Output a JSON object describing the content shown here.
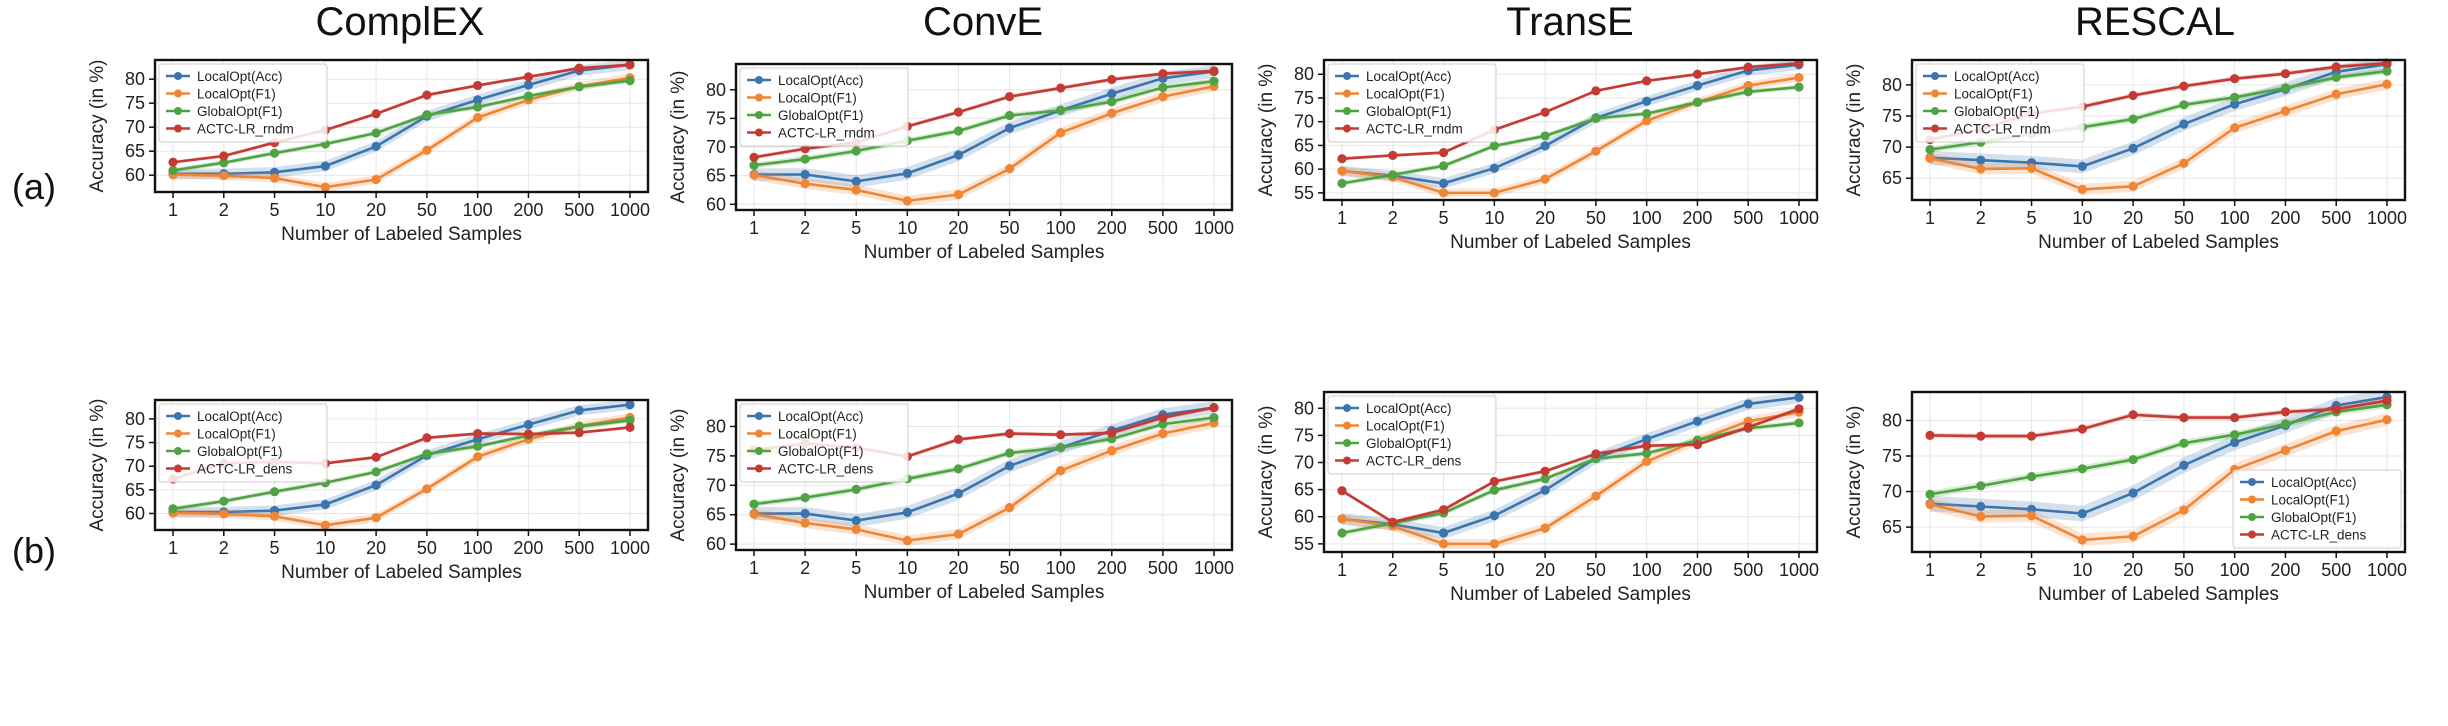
{
  "column_titles": [
    "ComplEX",
    "ConvE",
    "TransE",
    "RESCAL"
  ],
  "row_labels": [
    "(a)",
    "(b)"
  ],
  "colors": {
    "LocalOpt(Acc)": "#3b75af",
    "LocalOpt(F1)": "#ef8636",
    "GlobalOpt(F1)": "#4fa342",
    "ACTC-LR": "#c53a32"
  },
  "chart_data": [
    {
      "id": "a-complex",
      "type": "line",
      "title": "ComplEX",
      "xlabel": "Number of Labeled Samples",
      "ylabel": "Accuracy (in %)",
      "categories": [
        "1",
        "2",
        "5",
        "10",
        "20",
        "50",
        "100",
        "200",
        "500",
        "1000"
      ],
      "ylim": [
        56.5,
        84
      ],
      "yticks": [
        60,
        65,
        70,
        75,
        80
      ],
      "legend_pos": "top-left",
      "series": [
        {
          "name": "LocalOpt(Acc)",
          "color": "#3b75af",
          "values": [
            60.3,
            60.3,
            60.6,
            61.9,
            66.0,
            72.3,
            75.7,
            78.8,
            81.8,
            83.0
          ]
        },
        {
          "name": "LocalOpt(F1)",
          "color": "#ef8636",
          "values": [
            60.1,
            59.9,
            59.4,
            57.5,
            59.1,
            65.2,
            72.0,
            75.7,
            78.5,
            80.3
          ]
        },
        {
          "name": "GlobalOpt(F1)",
          "color": "#4fa342",
          "values": [
            61.0,
            62.6,
            64.6,
            66.5,
            68.8,
            72.6,
            74.2,
            76.5,
            78.4,
            79.7
          ]
        },
        {
          "name": "ACTC-LR_rndm",
          "color": "#c53a32",
          "values": [
            62.7,
            64.0,
            66.8,
            69.4,
            72.8,
            76.7,
            78.7,
            80.5,
            82.3,
            83.0
          ]
        }
      ]
    },
    {
      "id": "a-conve",
      "type": "line",
      "title": "ConvE",
      "xlabel": "Number of Labeled Samples",
      "ylabel": "Accuracy (in %)",
      "categories": [
        "1",
        "2",
        "5",
        "10",
        "20",
        "50",
        "100",
        "200",
        "500",
        "1000"
      ],
      "ylim": [
        59,
        84.5
      ],
      "yticks": [
        60,
        65,
        70,
        75,
        80
      ],
      "legend_pos": "top-left",
      "series": [
        {
          "name": "LocalOpt(Acc)",
          "color": "#3b75af",
          "values": [
            65.2,
            65.2,
            64.0,
            65.4,
            68.6,
            73.3,
            76.4,
            79.3,
            82.0,
            83.2
          ]
        },
        {
          "name": "LocalOpt(F1)",
          "color": "#ef8636",
          "values": [
            65.1,
            63.6,
            62.5,
            60.6,
            61.7,
            66.2,
            72.5,
            75.9,
            78.8,
            80.6
          ]
        },
        {
          "name": "GlobalOpt(F1)",
          "color": "#4fa342",
          "values": [
            66.8,
            67.9,
            69.3,
            71.1,
            72.8,
            75.5,
            76.4,
            77.9,
            80.4,
            81.5
          ]
        },
        {
          "name": "ACTC-LR_rndm",
          "color": "#c53a32",
          "values": [
            68.2,
            69.7,
            70.8,
            73.6,
            76.1,
            78.8,
            80.3,
            81.8,
            82.8,
            83.3
          ]
        }
      ]
    },
    {
      "id": "a-transe",
      "type": "line",
      "title": "TransE",
      "xlabel": "Number of Labeled Samples",
      "ylabel": "Accuracy (in %)",
      "categories": [
        "1",
        "2",
        "5",
        "10",
        "20",
        "50",
        "100",
        "200",
        "500",
        "1000"
      ],
      "ylim": [
        53.5,
        83
      ],
      "yticks": [
        55,
        60,
        65,
        70,
        75,
        80
      ],
      "legend_pos": "top-left",
      "series": [
        {
          "name": "LocalOpt(Acc)",
          "color": "#3b75af",
          "values": [
            59.6,
            58.6,
            57.0,
            60.2,
            64.9,
            70.8,
            74.3,
            77.6,
            80.8,
            82.0
          ]
        },
        {
          "name": "LocalOpt(F1)",
          "color": "#ef8636",
          "values": [
            59.6,
            58.3,
            55.0,
            55.0,
            57.9,
            63.8,
            70.2,
            74.1,
            77.6,
            79.3
          ]
        },
        {
          "name": "GlobalOpt(F1)",
          "color": "#4fa342",
          "values": [
            57.0,
            58.8,
            60.7,
            64.9,
            67.0,
            70.7,
            71.7,
            74.1,
            76.3,
            77.3
          ]
        },
        {
          "name": "ACTC-LR_rndm",
          "color": "#c53a32",
          "values": [
            62.2,
            62.9,
            63.5,
            68.3,
            72.0,
            76.5,
            78.6,
            80.0,
            81.5,
            82.3
          ]
        }
      ]
    },
    {
      "id": "a-rescal",
      "type": "line",
      "title": "RESCAL",
      "xlabel": "Number of Labeled Samples",
      "ylabel": "Accuracy (in %)",
      "categories": [
        "1",
        "2",
        "5",
        "10",
        "20",
        "50",
        "100",
        "200",
        "500",
        "1000"
      ],
      "ylim": [
        61.5,
        84
      ],
      "yticks": [
        65,
        70,
        75,
        80
      ],
      "legend_pos": "top-left",
      "series": [
        {
          "name": "LocalOpt(Acc)",
          "color": "#3b75af",
          "values": [
            68.3,
            67.9,
            67.5,
            66.9,
            69.8,
            73.7,
            76.9,
            79.3,
            82.1,
            83.3
          ]
        },
        {
          "name": "LocalOpt(F1)",
          "color": "#ef8636",
          "values": [
            68.2,
            66.5,
            66.6,
            63.2,
            63.7,
            67.4,
            73.1,
            75.8,
            78.5,
            80.1
          ]
        },
        {
          "name": "GlobalOpt(F1)",
          "color": "#4fa342",
          "values": [
            69.6,
            70.8,
            72.1,
            73.2,
            74.5,
            76.8,
            78.0,
            79.5,
            81.2,
            82.2
          ]
        },
        {
          "name": "ACTC-LR_rndm",
          "color": "#c53a32",
          "values": [
            71.2,
            72.9,
            75.4,
            76.5,
            78.3,
            79.8,
            81.0,
            81.8,
            82.9,
            83.5
          ]
        }
      ]
    },
    {
      "id": "b-complex",
      "type": "line",
      "title": "",
      "xlabel": "Number of Labeled Samples",
      "ylabel": "Accuracy (in %)",
      "categories": [
        "1",
        "2",
        "5",
        "10",
        "20",
        "50",
        "100",
        "200",
        "500",
        "1000"
      ],
      "ylim": [
        56.5,
        84
      ],
      "yticks": [
        60,
        65,
        70,
        75,
        80
      ],
      "legend_pos": "top-left",
      "series": [
        {
          "name": "LocalOpt(Acc)",
          "color": "#3b75af",
          "values": [
            60.3,
            60.3,
            60.6,
            61.9,
            66.0,
            72.3,
            75.7,
            78.8,
            81.8,
            83.0
          ]
        },
        {
          "name": "LocalOpt(F1)",
          "color": "#ef8636",
          "values": [
            60.1,
            59.9,
            59.4,
            57.5,
            59.1,
            65.2,
            72.0,
            75.7,
            78.5,
            80.3
          ]
        },
        {
          "name": "GlobalOpt(F1)",
          "color": "#4fa342",
          "values": [
            61.0,
            62.6,
            64.6,
            66.5,
            68.8,
            72.6,
            74.2,
            76.5,
            78.4,
            79.7
          ]
        },
        {
          "name": "ACTC-LR_dens",
          "color": "#c53a32",
          "values": [
            67.3,
            70.6,
            70.9,
            70.6,
            71.9,
            76.0,
            76.9,
            76.8,
            77.1,
            78.2
          ]
        }
      ]
    },
    {
      "id": "b-conve",
      "type": "line",
      "title": "",
      "xlabel": "Number of Labeled Samples",
      "ylabel": "Accuracy (in %)",
      "categories": [
        "1",
        "2",
        "5",
        "10",
        "20",
        "50",
        "100",
        "200",
        "500",
        "1000"
      ],
      "ylim": [
        59,
        84.5
      ],
      "yticks": [
        60,
        65,
        70,
        75,
        80
      ],
      "legend_pos": "top-left",
      "series": [
        {
          "name": "LocalOpt(Acc)",
          "color": "#3b75af",
          "values": [
            65.2,
            65.2,
            64.0,
            65.4,
            68.6,
            73.3,
            76.4,
            79.3,
            82.0,
            83.2
          ]
        },
        {
          "name": "LocalOpt(F1)",
          "color": "#ef8636",
          "values": [
            65.1,
            63.6,
            62.5,
            60.6,
            61.7,
            66.2,
            72.5,
            75.9,
            78.8,
            80.6
          ]
        },
        {
          "name": "GlobalOpt(F1)",
          "color": "#4fa342",
          "values": [
            66.8,
            67.9,
            69.3,
            71.1,
            72.8,
            75.5,
            76.4,
            77.9,
            80.4,
            81.5
          ]
        },
        {
          "name": "ACTC-LR_dens",
          "color": "#c53a32",
          "values": [
            76.0,
            77.1,
            76.4,
            74.9,
            77.8,
            78.8,
            78.6,
            78.9,
            81.5,
            83.2
          ]
        }
      ]
    },
    {
      "id": "b-transe",
      "type": "line",
      "title": "",
      "xlabel": "Number of Labeled Samples",
      "ylabel": "Accuracy (in %)",
      "categories": [
        "1",
        "2",
        "5",
        "10",
        "20",
        "50",
        "100",
        "200",
        "500",
        "1000"
      ],
      "ylim": [
        53.5,
        83
      ],
      "yticks": [
        55,
        60,
        65,
        70,
        75,
        80
      ],
      "legend_pos": "top-left",
      "series": [
        {
          "name": "LocalOpt(Acc)",
          "color": "#3b75af",
          "values": [
            59.6,
            58.6,
            57.0,
            60.2,
            64.9,
            70.8,
            74.3,
            77.6,
            80.8,
            82.0
          ]
        },
        {
          "name": "LocalOpt(F1)",
          "color": "#ef8636",
          "values": [
            59.6,
            58.3,
            55.0,
            55.0,
            57.9,
            63.8,
            70.2,
            74.1,
            77.6,
            79.3
          ]
        },
        {
          "name": "GlobalOpt(F1)",
          "color": "#4fa342",
          "values": [
            57.0,
            58.8,
            60.7,
            64.9,
            67.0,
            70.7,
            71.7,
            74.1,
            76.3,
            77.3
          ]
        },
        {
          "name": "ACTC-LR_dens",
          "color": "#c53a32",
          "values": [
            64.8,
            59.0,
            61.3,
            66.5,
            68.4,
            71.6,
            73.1,
            73.3,
            76.5,
            79.9
          ]
        }
      ]
    },
    {
      "id": "b-rescal",
      "type": "line",
      "title": "",
      "xlabel": "Number of Labeled Samples",
      "ylabel": "Accuracy (in %)",
      "categories": [
        "1",
        "2",
        "5",
        "10",
        "20",
        "50",
        "100",
        "200",
        "500",
        "1000"
      ],
      "ylim": [
        61.5,
        84
      ],
      "yticks": [
        65,
        70,
        75,
        80
      ],
      "legend_pos": "bottom-right",
      "series": [
        {
          "name": "LocalOpt(Acc)",
          "color": "#3b75af",
          "values": [
            68.3,
            67.9,
            67.5,
            66.9,
            69.8,
            73.7,
            76.9,
            79.3,
            82.1,
            83.3
          ]
        },
        {
          "name": "LocalOpt(F1)",
          "color": "#ef8636",
          "values": [
            68.2,
            66.5,
            66.6,
            63.2,
            63.7,
            67.4,
            73.1,
            75.8,
            78.5,
            80.1
          ]
        },
        {
          "name": "GlobalOpt(F1)",
          "color": "#4fa342",
          "values": [
            69.6,
            70.8,
            72.1,
            73.2,
            74.5,
            76.8,
            78.0,
            79.5,
            81.2,
            82.2
          ]
        },
        {
          "name": "ACTC-LR_dens",
          "color": "#c53a32",
          "values": [
            77.9,
            77.8,
            77.8,
            78.8,
            80.8,
            80.4,
            80.4,
            81.2,
            81.6,
            82.8
          ]
        }
      ]
    }
  ]
}
